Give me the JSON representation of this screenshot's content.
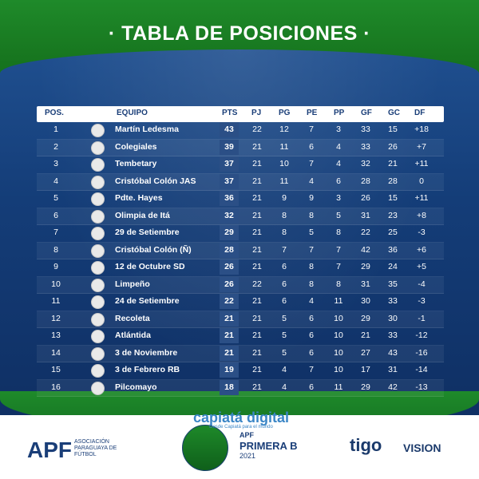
{
  "header": {
    "title": "· TABLA DE POSICIONES ·"
  },
  "table": {
    "columns": [
      "POS.",
      "EQUIPO",
      "PTS",
      "PJ",
      "PG",
      "PE",
      "PP",
      "GF",
      "GC",
      "DF"
    ],
    "rows": [
      [
        "1",
        "Martín Ledesma",
        "43",
        "22",
        "12",
        "7",
        "3",
        "33",
        "15",
        "+18"
      ],
      [
        "2",
        "Colegiales",
        "39",
        "21",
        "11",
        "6",
        "4",
        "33",
        "26",
        "+7"
      ],
      [
        "3",
        "Tembetary",
        "37",
        "21",
        "10",
        "7",
        "4",
        "32",
        "21",
        "+11"
      ],
      [
        "4",
        "Cristóbal Colón JAS",
        "37",
        "21",
        "11",
        "4",
        "6",
        "28",
        "28",
        "0"
      ],
      [
        "5",
        "Pdte. Hayes",
        "36",
        "21",
        "9",
        "9",
        "3",
        "26",
        "15",
        "+11"
      ],
      [
        "6",
        "Olimpia de Itá",
        "32",
        "21",
        "8",
        "8",
        "5",
        "31",
        "23",
        "+8"
      ],
      [
        "7",
        "29 de Setiembre",
        "29",
        "21",
        "8",
        "5",
        "8",
        "22",
        "25",
        "-3"
      ],
      [
        "8",
        "Cristóbal Colón (Ñ)",
        "28",
        "21",
        "7",
        "7",
        "7",
        "42",
        "36",
        "+6"
      ],
      [
        "9",
        "12 de Octubre SD",
        "26",
        "21",
        "6",
        "8",
        "7",
        "29",
        "24",
        "+5"
      ],
      [
        "10",
        "Limpeño",
        "26",
        "22",
        "6",
        "8",
        "8",
        "31",
        "35",
        "-4"
      ],
      [
        "11",
        "24 de Setiembre",
        "22",
        "21",
        "6",
        "4",
        "11",
        "30",
        "33",
        "-3"
      ],
      [
        "12",
        "Recoleta",
        "21",
        "21",
        "5",
        "6",
        "10",
        "29",
        "30",
        "-1"
      ],
      [
        "13",
        "Atlántida",
        "21",
        "21",
        "5",
        "6",
        "10",
        "21",
        "33",
        "-12"
      ],
      [
        "14",
        "3 de Noviembre",
        "21",
        "21",
        "5",
        "6",
        "10",
        "27",
        "43",
        "-16"
      ],
      [
        "15",
        "3 de Febrero RB",
        "19",
        "21",
        "4",
        "7",
        "10",
        "17",
        "31",
        "-14"
      ],
      [
        "16",
        "Pilcomayo",
        "18",
        "21",
        "4",
        "6",
        "11",
        "29",
        "42",
        "-13"
      ]
    ]
  },
  "footer": {
    "apf_logo": "APF",
    "apf_sub": "ASOCIACIÓN PARAGUAYA DE FÚTBOL",
    "brand": "capiatá digital",
    "brand_tag": "Desde Capiatá para el mundo",
    "apf_small": "APF",
    "primera": "PRIMERA B",
    "year": "2021",
    "tigo": "tigo",
    "vision": "VISION"
  },
  "colors": {
    "green": "#1e8a2a",
    "blue": "#143d78",
    "navy": "#1a3e78"
  }
}
